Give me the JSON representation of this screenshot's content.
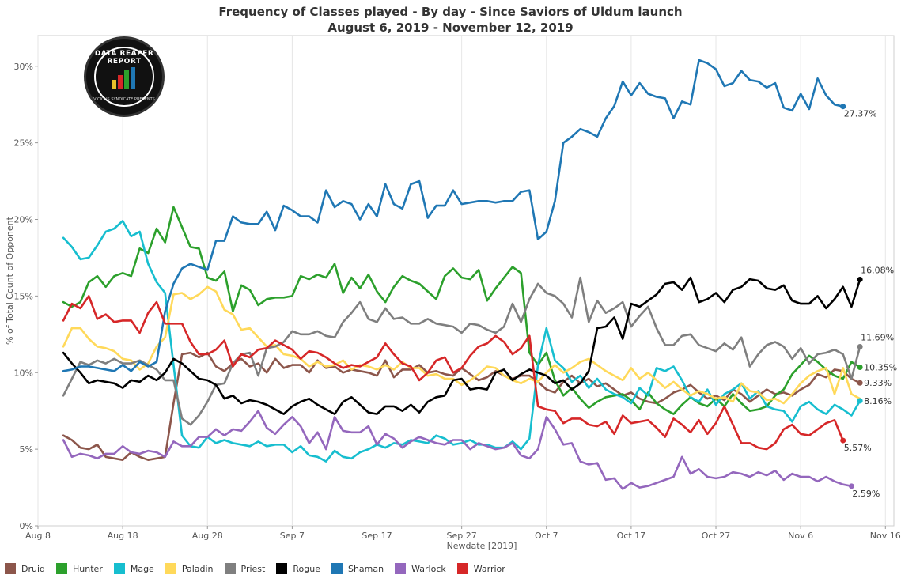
{
  "chart_data": {
    "type": "line",
    "title": "Frequency of Classes played - By day - Since Saviors of Uldum launch",
    "subtitle": "August 6, 2019 - November 12, 2019",
    "xlabel": "Newdate [2019]",
    "ylabel": "% of Total Count of Opponent",
    "x_start": "2019-08-11",
    "x_end": "2019-11-12",
    "xlim": [
      "2019-08-08",
      "2019-11-17"
    ],
    "ylim": [
      0,
      32
    ],
    "x_ticks": [
      {
        "date": "2019-08-08",
        "label": "Aug 8"
      },
      {
        "date": "2019-08-18",
        "label": "Aug 18"
      },
      {
        "date": "2019-08-28",
        "label": "Aug 28"
      },
      {
        "date": "2019-09-07",
        "label": "Sep 7"
      },
      {
        "date": "2019-09-17",
        "label": "Sep 17"
      },
      {
        "date": "2019-09-27",
        "label": "Sep 27"
      },
      {
        "date": "2019-10-07",
        "label": "Oct 7"
      },
      {
        "date": "2019-10-17",
        "label": "Oct 17"
      },
      {
        "date": "2019-10-27",
        "label": "Oct 27"
      },
      {
        "date": "2019-11-06",
        "label": "Nov 6"
      },
      {
        "date": "2019-11-16",
        "label": "Nov 16"
      }
    ],
    "y_ticks": [
      {
        "value": 0,
        "label": "0%"
      },
      {
        "value": 5,
        "label": "5%"
      },
      {
        "value": 10,
        "label": "10%"
      },
      {
        "value": 15,
        "label": "15%"
      },
      {
        "value": 20,
        "label": "20%"
      },
      {
        "value": 25,
        "label": "25%"
      },
      {
        "value": 30,
        "label": "30%"
      }
    ],
    "grid": "vertical",
    "legend_position": "bottom-left",
    "series": [
      {
        "name": "Druid",
        "color": "#8c564b",
        "end_label": "9.33%",
        "values": [
          5.9,
          5.6,
          5.1,
          5.0,
          5.3,
          4.5,
          4.4,
          4.3,
          4.8,
          4.5,
          4.3,
          4.4,
          4.5,
          8.0,
          11.2,
          11.3,
          11.0,
          11.3,
          10.4,
          10.1,
          10.6,
          10.9,
          10.4,
          10.6,
          10.0,
          10.9,
          10.3,
          10.5,
          10.5,
          10.0,
          10.8,
          10.3,
          10.4,
          10.0,
          10.2,
          10.1,
          10.0,
          9.8,
          10.8,
          9.7,
          10.2,
          10.2,
          10.5,
          10.0,
          10.1,
          9.9,
          9.8,
          10.3,
          9.9,
          9.5,
          9.7,
          10.1,
          9.8,
          9.6,
          9.8,
          9.8,
          9.4,
          8.9,
          8.7,
          9.4,
          9.8,
          9.3,
          9.6,
          9.1,
          9.3,
          8.9,
          8.5,
          8.7,
          8.3,
          8.1,
          8.0,
          8.3,
          8.7,
          8.9,
          9.2,
          8.7,
          8.3,
          8.5,
          8.2,
          8.9,
          8.6,
          8.1,
          8.5,
          8.9,
          8.6,
          8.7,
          8.5,
          8.9,
          9.2,
          9.9,
          9.7,
          10.2,
          10.1,
          9.6,
          9.33
        ]
      },
      {
        "name": "Hunter",
        "color": "#2ca02c",
        "end_label": "10.35%",
        "values": [
          14.6,
          14.3,
          14.6,
          15.9,
          16.3,
          15.6,
          16.3,
          16.5,
          16.3,
          18.1,
          17.8,
          19.4,
          18.5,
          20.8,
          19.5,
          18.2,
          18.1,
          16.2,
          16.0,
          16.6,
          14.0,
          15.7,
          15.4,
          14.4,
          14.8,
          14.9,
          14.9,
          15.0,
          16.3,
          16.1,
          16.4,
          16.2,
          17.1,
          15.2,
          16.2,
          15.5,
          16.4,
          15.3,
          14.6,
          15.6,
          16.3,
          16.0,
          15.8,
          15.3,
          14.8,
          16.3,
          16.8,
          16.2,
          16.1,
          16.7,
          14.7,
          15.5,
          16.2,
          16.9,
          16.5,
          11.3,
          10.5,
          11.3,
          9.5,
          8.5,
          9.0,
          8.3,
          7.7,
          8.1,
          8.4,
          8.5,
          8.6,
          8.2,
          7.6,
          8.7,
          8.0,
          7.6,
          7.3,
          7.9,
          8.4,
          8.0,
          7.8,
          8.3,
          7.8,
          8.6,
          8.0,
          7.5,
          7.6,
          7.8,
          8.5,
          8.9,
          9.9,
          10.5,
          11.1,
          10.7,
          10.2,
          9.8,
          9.6,
          10.7,
          10.35
        ]
      },
      {
        "name": "Mage",
        "color": "#17becf",
        "end_label": "8.16%",
        "values": [
          18.8,
          18.2,
          17.4,
          17.5,
          18.3,
          19.2,
          19.4,
          19.9,
          18.9,
          19.2,
          17.1,
          15.9,
          15.2,
          10.5,
          5.9,
          5.2,
          5.1,
          5.8,
          5.4,
          5.6,
          5.4,
          5.3,
          5.2,
          5.5,
          5.2,
          5.3,
          5.3,
          4.8,
          5.2,
          4.6,
          4.5,
          4.2,
          4.9,
          4.5,
          4.4,
          4.8,
          5.0,
          5.3,
          5.1,
          5.4,
          5.3,
          5.6,
          5.5,
          5.4,
          5.9,
          5.7,
          5.3,
          5.4,
          5.6,
          5.3,
          5.3,
          5.1,
          5.1,
          5.5,
          5.0,
          5.7,
          10.5,
          12.9,
          10.8,
          10.3,
          9.4,
          9.8,
          9.0,
          9.6,
          8.9,
          8.6,
          8.4,
          8.0,
          9.0,
          8.5,
          10.3,
          10.1,
          10.4,
          9.5,
          8.4,
          8.1,
          8.9,
          7.9,
          8.6,
          8.9,
          9.3,
          8.3,
          8.8,
          7.8,
          7.6,
          7.5,
          6.8,
          7.8,
          8.1,
          7.6,
          7.3,
          7.9,
          7.6,
          7.2,
          8.16
        ]
      },
      {
        "name": "Paladin",
        "color": "#ffd95a",
        "end_label": "",
        "values": [
          11.7,
          12.9,
          12.9,
          12.2,
          11.7,
          11.6,
          11.4,
          10.9,
          10.8,
          10.2,
          10.6,
          11.7,
          12.3,
          15.1,
          15.2,
          14.8,
          15.1,
          15.6,
          15.3,
          14.1,
          13.8,
          12.8,
          12.9,
          12.3,
          11.7,
          11.8,
          11.2,
          11.1,
          10.9,
          10.4,
          10.7,
          10.4,
          10.5,
          10.8,
          10.2,
          10.5,
          10.4,
          10.2,
          10.5,
          10.2,
          10.7,
          10.3,
          10.3,
          9.8,
          9.9,
          9.6,
          9.6,
          9.2,
          9.5,
          9.9,
          10.4,
          10.3,
          9.8,
          9.5,
          9.3,
          9.6,
          9.4,
          10.0,
          10.5,
          10.0,
          10.3,
          10.7,
          10.9,
          10.5,
          10.1,
          9.8,
          9.5,
          10.3,
          9.6,
          10.0,
          9.5,
          9.0,
          9.4,
          8.9,
          8.5,
          8.8,
          8.6,
          8.3,
          8.4,
          8.1,
          9.3,
          8.8,
          8.7,
          8.2,
          8.3,
          8.0,
          8.6,
          9.3,
          9.8,
          10.1,
          10.3,
          8.6,
          10.3,
          8.6,
          8.3
        ]
      },
      {
        "name": "Priest",
        "color": "#7f7f7f",
        "end_label": "11.69%",
        "values": [
          8.5,
          9.6,
          10.7,
          10.5,
          10.8,
          10.6,
          10.9,
          10.6,
          10.6,
          10.8,
          10.5,
          10.2,
          9.5,
          9.5,
          7.0,
          6.6,
          7.2,
          8.1,
          9.2,
          9.3,
          10.6,
          11.2,
          11.3,
          9.8,
          11.6,
          11.7,
          12.0,
          12.7,
          12.5,
          12.5,
          12.7,
          12.4,
          12.3,
          13.3,
          13.9,
          14.6,
          13.5,
          13.3,
          14.2,
          13.5,
          13.6,
          13.2,
          13.2,
          13.5,
          13.2,
          13.1,
          13.0,
          12.6,
          13.2,
          13.1,
          12.8,
          12.6,
          13.0,
          14.5,
          13.3,
          14.8,
          15.8,
          15.2,
          15.0,
          14.5,
          13.6,
          16.2,
          13.3,
          14.7,
          13.9,
          14.2,
          14.6,
          13.0,
          13.7,
          14.3,
          12.9,
          11.8,
          11.8,
          12.4,
          12.5,
          11.8,
          11.6,
          11.4,
          11.9,
          11.5,
          12.3,
          10.4,
          11.2,
          11.8,
          12.0,
          11.7,
          10.9,
          11.6,
          10.6,
          11.2,
          11.3,
          11.5,
          11.2,
          9.6,
          11.69
        ]
      },
      {
        "name": "Rogue",
        "color": "#000000",
        "end_label": "16.08%",
        "values": [
          11.3,
          10.6,
          10.0,
          9.3,
          9.5,
          9.4,
          9.3,
          9.0,
          9.5,
          9.4,
          9.8,
          9.5,
          10.0,
          10.9,
          10.6,
          10.1,
          9.6,
          9.5,
          9.2,
          8.3,
          8.5,
          8.0,
          8.2,
          8.1,
          7.9,
          7.6,
          7.3,
          7.8,
          8.1,
          8.3,
          7.9,
          7.6,
          7.3,
          8.1,
          8.4,
          7.9,
          7.4,
          7.3,
          7.8,
          7.8,
          7.5,
          7.9,
          7.4,
          8.1,
          8.4,
          8.5,
          9.5,
          9.6,
          8.9,
          9.0,
          8.9,
          10.0,
          10.2,
          9.5,
          9.9,
          10.2,
          10.0,
          9.8,
          9.3,
          9.5,
          8.9,
          9.3,
          10.1,
          12.9,
          13.0,
          13.6,
          12.2,
          14.5,
          14.3,
          14.7,
          15.1,
          15.8,
          15.9,
          15.4,
          16.2,
          14.6,
          14.8,
          15.2,
          14.6,
          15.4,
          15.6,
          16.1,
          16.0,
          15.5,
          15.4,
          15.7,
          14.7,
          14.5,
          14.5,
          15.0,
          14.2,
          14.8,
          15.6,
          14.3,
          16.08
        ]
      },
      {
        "name": "Shaman",
        "color": "#1f77b4",
        "end_label": "27.37%",
        "values": [
          10.1,
          10.2,
          10.4,
          10.4,
          10.3,
          10.2,
          10.1,
          10.5,
          10.1,
          10.7,
          10.4,
          10.7,
          14.0,
          15.8,
          16.8,
          17.1,
          16.9,
          16.7,
          18.6,
          18.6,
          20.2,
          19.8,
          19.7,
          19.7,
          20.5,
          19.3,
          20.9,
          20.6,
          20.2,
          20.2,
          19.8,
          21.9,
          20.8,
          21.2,
          21.0,
          20.0,
          21.0,
          20.2,
          22.3,
          21.0,
          20.7,
          22.3,
          22.5,
          20.1,
          20.9,
          20.9,
          21.9,
          21.0,
          21.1,
          21.2,
          21.2,
          21.1,
          21.2,
          21.2,
          21.8,
          21.9,
          18.7,
          19.2,
          21.2,
          25.0,
          25.4,
          25.9,
          25.7,
          25.4,
          26.6,
          27.4,
          29.0,
          28.1,
          28.9,
          28.2,
          28.0,
          27.9,
          26.6,
          27.7,
          27.5,
          30.4,
          30.2,
          29.8,
          28.7,
          28.9,
          29.7,
          29.1,
          29.0,
          28.6,
          28.9,
          27.3,
          27.1,
          28.2,
          27.2,
          29.2,
          28.1,
          27.5,
          27.37
        ]
      },
      {
        "name": "Warlock",
        "color": "#9467bd",
        "end_label": "2.59%",
        "values": [
          5.6,
          4.5,
          4.7,
          4.6,
          4.4,
          4.7,
          4.7,
          5.2,
          4.8,
          4.7,
          4.9,
          4.8,
          4.5,
          5.5,
          5.2,
          5.2,
          5.8,
          5.8,
          6.3,
          5.9,
          6.3,
          6.2,
          6.8,
          7.5,
          6.4,
          6.0,
          6.6,
          7.1,
          6.5,
          5.4,
          6.1,
          5.0,
          7.1,
          6.2,
          6.1,
          6.1,
          6.5,
          5.3,
          6.0,
          5.7,
          5.1,
          5.5,
          5.8,
          5.6,
          5.4,
          5.3,
          5.6,
          5.6,
          5.0,
          5.4,
          5.2,
          5.0,
          5.1,
          5.4,
          4.6,
          4.4,
          5.0,
          7.1,
          6.3,
          5.3,
          5.4,
          4.2,
          4.0,
          4.1,
          3.0,
          3.1,
          2.4,
          2.8,
          2.5,
          2.6,
          2.8,
          3.0,
          3.2,
          4.5,
          3.4,
          3.7,
          3.2,
          3.1,
          3.2,
          3.5,
          3.4,
          3.2,
          3.5,
          3.3,
          3.6,
          3.0,
          3.4,
          3.2,
          3.2,
          2.9,
          3.2,
          2.9,
          2.7,
          2.59
        ]
      },
      {
        "name": "Warrior",
        "color": "#d62728",
        "end_label": "5.57%",
        "values": [
          13.4,
          14.5,
          14.2,
          15.0,
          13.5,
          13.8,
          13.3,
          13.4,
          13.4,
          12.6,
          13.9,
          14.6,
          13.2,
          13.2,
          13.2,
          12.0,
          11.2,
          11.2,
          11.5,
          12.1,
          10.4,
          11.2,
          11.0,
          11.5,
          11.6,
          12.1,
          11.8,
          11.5,
          10.9,
          11.4,
          11.3,
          11.0,
          10.6,
          10.3,
          10.5,
          10.4,
          10.7,
          11.0,
          11.9,
          11.2,
          10.6,
          10.4,
          9.5,
          10.0,
          10.8,
          11.0,
          10.0,
          10.3,
          11.1,
          11.7,
          11.9,
          12.4,
          12.0,
          11.2,
          11.6,
          12.4,
          7.8,
          7.6,
          7.5,
          6.7,
          7.0,
          7.0,
          6.6,
          6.5,
          6.8,
          6.0,
          7.2,
          6.7,
          6.8,
          6.9,
          6.4,
          5.8,
          7.0,
          6.6,
          6.1,
          6.9,
          6.0,
          6.7,
          7.8,
          6.6,
          5.4,
          5.4,
          5.1,
          5.0,
          5.4,
          6.3,
          6.6,
          6.0,
          5.9,
          6.3,
          6.7,
          6.9,
          5.57
        ]
      }
    ]
  },
  "logo": {
    "text": "DATA REAPER REPORT",
    "subtext": "VICIOUS SYNDICATE PRESENTS"
  }
}
